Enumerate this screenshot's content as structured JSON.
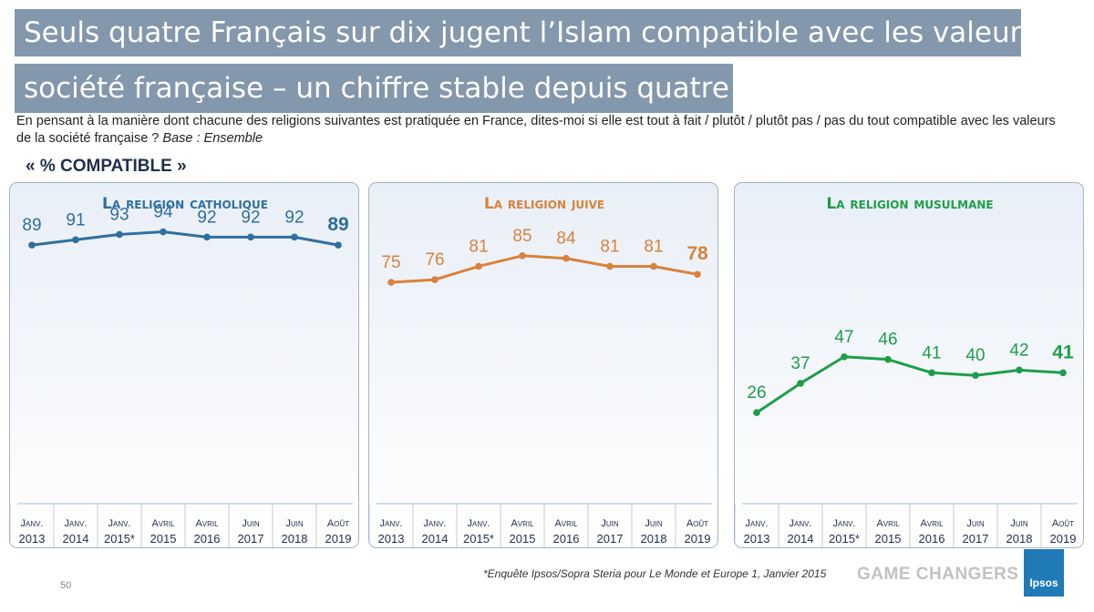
{
  "title_line1": "Seuls quatre Français sur dix jugent l’Islam compatible avec les valeurs de la",
  "title_line2": "société française – un chiffre stable depuis quatre ans",
  "question": "En pensant à la manière dont chacune des religions suivantes est pratiquée en France, dites-moi si elle est tout à fait / plutôt / plutôt pas / pas du tout compatible avec les valeurs de la société française ?",
  "base": "Base : Ensemble",
  "compatible_label": "« % COMPATIBLE »",
  "footnote": "*Enquête Ipsos/Sopra Steria pour Le Monde et Europe 1, Janvier 2015",
  "page_number": "50",
  "brand_tagline": "GAME CHANGERS",
  "brand_logo": "Ipsos",
  "chart_data": [
    {
      "type": "line",
      "title": "La religion catholique",
      "color": "#2f6f9f",
      "categories": [
        [
          "Janv.",
          "2013"
        ],
        [
          "Janv.",
          "2014"
        ],
        [
          "Janv.",
          "2015*"
        ],
        [
          "Avril",
          "2015"
        ],
        [
          "Avril",
          "2016"
        ],
        [
          "Juin",
          "2017"
        ],
        [
          "Juin",
          "2018"
        ],
        [
          "Août",
          "2019"
        ]
      ],
      "values": [
        89,
        91,
        93,
        94,
        92,
        92,
        92,
        89
      ],
      "ylim": [
        0,
        100
      ]
    },
    {
      "type": "line",
      "title": "La religion juive",
      "color": "#d9823c",
      "categories": [
        [
          "Janv.",
          "2013"
        ],
        [
          "Janv.",
          "2014"
        ],
        [
          "Janv.",
          "2015*"
        ],
        [
          "Avril",
          "2015"
        ],
        [
          "Avril",
          "2016"
        ],
        [
          "Juin",
          "2017"
        ],
        [
          "Juin",
          "2018"
        ],
        [
          "Août",
          "2019"
        ]
      ],
      "values": [
        75,
        76,
        81,
        85,
        84,
        81,
        81,
        78
      ],
      "ylim": [
        0,
        100
      ]
    },
    {
      "type": "line",
      "title": "La religion musulmane",
      "color": "#1e9e4a",
      "categories": [
        [
          "Janv.",
          "2013"
        ],
        [
          "Janv.",
          "2014"
        ],
        [
          "Janv.",
          "2015*"
        ],
        [
          "Avril",
          "2015"
        ],
        [
          "Avril",
          "2016"
        ],
        [
          "Juin",
          "2017"
        ],
        [
          "Juin",
          "2018"
        ],
        [
          "Août",
          "2019"
        ]
      ],
      "values": [
        26,
        37,
        47,
        46,
        41,
        40,
        42,
        41
      ],
      "ylim": [
        0,
        100
      ]
    }
  ]
}
